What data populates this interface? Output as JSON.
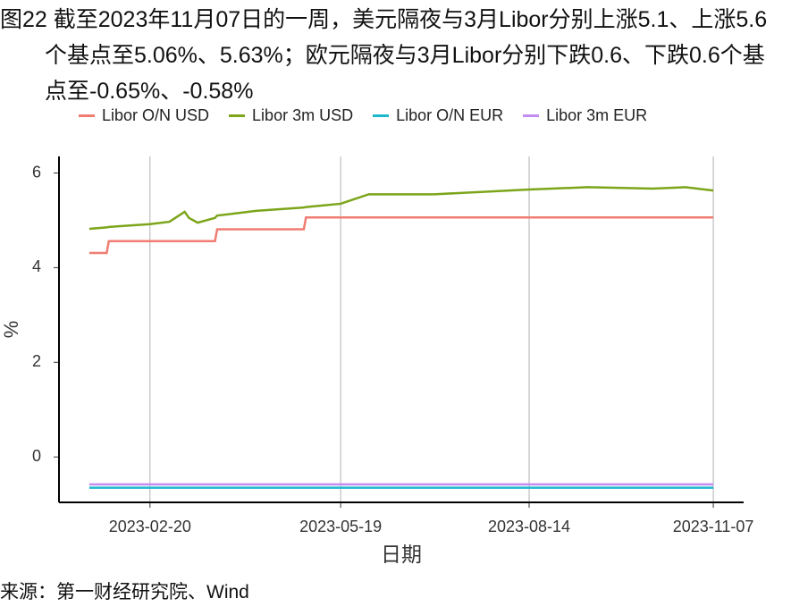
{
  "chart_data": {
    "type": "line",
    "title": "图22  截至2023年11月07日的一周，美元隔夜与3月Libor分别上涨5.1、上涨5.6个基点至5.06%、5.63%；欧元隔夜与3月Libor分别下跌0.6、下跌0.6个基点至-0.65%、-0.58%",
    "source": "来源：第一财经研究院、Wind",
    "x_label": "日期",
    "y_label": "%",
    "x": [
      "2023-01-23",
      "2023-01-31",
      "2023-02-01",
      "2023-02-20",
      "2023-03-01",
      "2023-03-08",
      "2023-03-10",
      "2023-03-14",
      "2023-03-22",
      "2023-03-23",
      "2023-04-10",
      "2023-05-02",
      "2023-05-03",
      "2023-05-19",
      "2023-06-01",
      "2023-07-01",
      "2023-08-01",
      "2023-08-14",
      "2023-09-10",
      "2023-10-10",
      "2023-10-25",
      "2023-11-07"
    ],
    "series": [
      {
        "name": "Libor O/N USD",
        "color": "#f07d72",
        "values": [
          4.31,
          4.31,
          4.56,
          4.56,
          4.56,
          4.56,
          4.56,
          4.56,
          4.56,
          4.81,
          4.81,
          4.81,
          5.06,
          5.06,
          5.06,
          5.06,
          5.06,
          5.06,
          5.06,
          5.06,
          5.06,
          5.06
        ]
      },
      {
        "name": "Libor 3m USD",
        "color": "#7ca51a",
        "values": [
          4.82,
          4.85,
          4.86,
          4.92,
          4.97,
          5.18,
          5.05,
          4.95,
          5.05,
          5.1,
          5.2,
          5.27,
          5.28,
          5.35,
          5.55,
          5.55,
          5.62,
          5.65,
          5.7,
          5.67,
          5.7,
          5.63
        ]
      },
      {
        "name": "Libor O/N EUR",
        "color": "#1bb8cc",
        "values": [
          -0.65,
          -0.65,
          -0.65,
          -0.65,
          -0.65,
          -0.65,
          -0.65,
          -0.65,
          -0.65,
          -0.65,
          -0.65,
          -0.65,
          -0.65,
          -0.65,
          -0.65,
          -0.65,
          -0.65,
          -0.65,
          -0.65,
          -0.65,
          -0.65,
          -0.65
        ]
      },
      {
        "name": "Libor 3m EUR",
        "color": "#c38cf2",
        "values": [
          -0.58,
          -0.58,
          -0.58,
          -0.58,
          -0.58,
          -0.58,
          -0.58,
          -0.58,
          -0.58,
          -0.58,
          -0.58,
          -0.58,
          -0.58,
          -0.58,
          -0.58,
          -0.58,
          -0.58,
          -0.58,
          -0.58,
          -0.58,
          -0.58,
          -0.58
        ]
      }
    ],
    "xlim": [
      "2023-01-09",
      "2023-11-21"
    ],
    "xticks": [
      "2023-02-20",
      "2023-05-19",
      "2023-08-14",
      "2023-11-07"
    ],
    "ylim": [
      -0.96,
      6.35
    ],
    "yticks": [
      0,
      2,
      4,
      6
    ],
    "grid": "x",
    "legend": "top"
  }
}
